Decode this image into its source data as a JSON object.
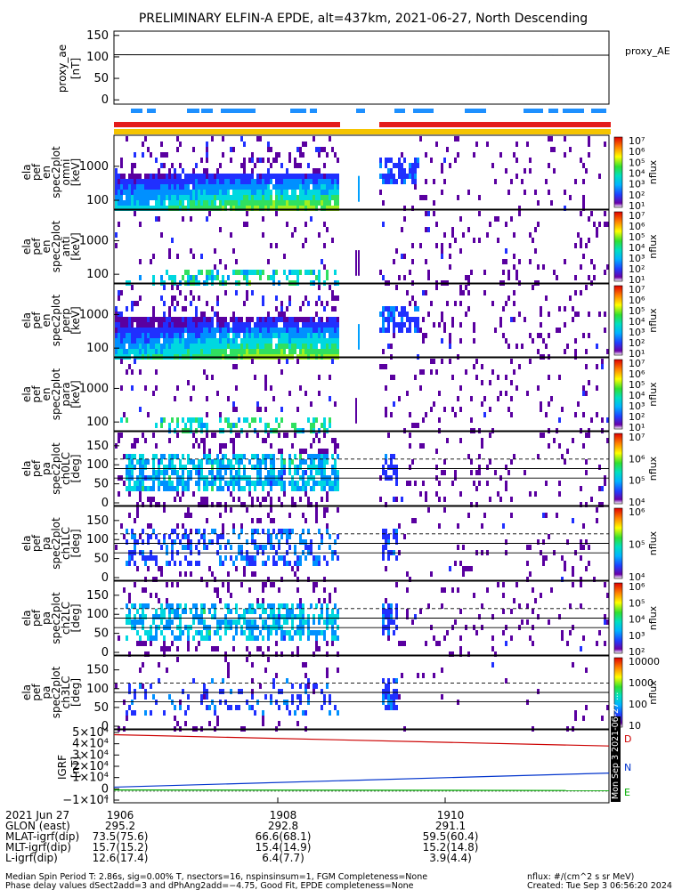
{
  "title": "PRELIMINARY ELFIN-A EPDE, alt=437km, 2021-06-27, North Descending",
  "colors": {
    "red_bar": "#e41c1c",
    "yellow_bar": "#f5c400",
    "blue_mark": "#1e90ff",
    "grf_d": "#cc0000",
    "grf_n": "#0033cc",
    "grf_e": "#00aa00"
  },
  "panels": {
    "proxy_ae": {
      "ylabel": [
        "proxy_ae",
        "[nT]"
      ],
      "yticks": [
        "150",
        "100",
        "50",
        "0"
      ],
      "legend": "proxy_AE"
    },
    "en1": {
      "ylabel": [
        "ela",
        "pef",
        "en",
        "spec2plot",
        "omni",
        "[keV]"
      ],
      "yticks": [
        "1000",
        "100"
      ],
      "cbar_ticks": [
        "10⁷",
        "10⁶",
        "10⁵",
        "10⁴",
        "10³",
        "10²",
        "10¹"
      ],
      "cbar_label": "nflux"
    },
    "en2": {
      "ylabel": [
        "ela",
        "pef",
        "en",
        "spec2plot",
        "anti",
        "[keV]"
      ],
      "yticks": [
        "1000",
        "100"
      ],
      "cbar_ticks": [
        "10⁷",
        "10⁶",
        "10⁵",
        "10⁴",
        "10³",
        "10²",
        "10¹"
      ],
      "cbar_label": "nflux"
    },
    "en3": {
      "ylabel": [
        "ela",
        "pef",
        "en",
        "spec2plot",
        "perp",
        "[keV]"
      ],
      "yticks": [
        "1000",
        "100"
      ],
      "cbar_ticks": [
        "10⁷",
        "10⁶",
        "10⁵",
        "10⁴",
        "10³",
        "10²",
        "10¹"
      ],
      "cbar_label": "nflux"
    },
    "en4": {
      "ylabel": [
        "ela",
        "pef",
        "en",
        "spec2plot",
        "para",
        "[keV]"
      ],
      "yticks": [
        "1000",
        "100"
      ],
      "cbar_ticks": [
        "10⁷",
        "10⁶",
        "10⁵",
        "10⁴",
        "10³",
        "10²",
        "10¹"
      ],
      "cbar_label": "nflux"
    },
    "pa0": {
      "ylabel": [
        "ela",
        "pef",
        "pa",
        "spec2plot",
        "ch0LC",
        "[deg]"
      ],
      "yticks": [
        "150",
        "100",
        "50",
        "0"
      ],
      "cbar_ticks": [
        "10⁷",
        "10⁶",
        "10⁵",
        "10⁴"
      ],
      "cbar_label": "nflux"
    },
    "pa1": {
      "ylabel": [
        "ela",
        "pef",
        "pa",
        "spec2plot",
        "ch1LC",
        "[deg]"
      ],
      "yticks": [
        "150",
        "100",
        "50",
        "0"
      ],
      "cbar_ticks": [
        "10⁶",
        "10⁵",
        "10⁴"
      ],
      "cbar_label": "nflux"
    },
    "pa2": {
      "ylabel": [
        "ela",
        "pef",
        "pa",
        "spec2plot",
        "ch2LC",
        "[deg]"
      ],
      "yticks": [
        "150",
        "100",
        "50",
        "0"
      ],
      "cbar_ticks": [
        "10⁶",
        "10⁵",
        "10⁴",
        "10³",
        "10²"
      ],
      "cbar_label": "nflux"
    },
    "pa3": {
      "ylabel": [
        "ela",
        "pef",
        "pa",
        "spec2plot",
        "ch3LC",
        "[deg]"
      ],
      "yticks": [
        "150",
        "100",
        "50",
        "0"
      ],
      "cbar_ticks": [
        "10000",
        "1000",
        "100",
        "10"
      ],
      "cbar_label": "nflux"
    },
    "igrf": {
      "ylabel": [
        "IGRF",
        "[nT]"
      ],
      "yticks": [
        "5×10⁴",
        "4×10⁴",
        "3×10⁴",
        "2×10⁴",
        "1×10⁴",
        "0",
        "−1×10⁴"
      ],
      "legend": [
        "D",
        "N",
        "E"
      ],
      "side_note": "Mon Sep  3 2021-06-27 ..."
    }
  },
  "chart_data": {
    "type": "line",
    "x_unit": "UT (HHMM)",
    "proxy_ae": {
      "x": [
        "1905:30",
        "1912:00"
      ],
      "y": [
        105,
        104
      ]
    },
    "igrf": {
      "series": [
        {
          "name": "D",
          "x": [
            "1905:30",
            "1912:00"
          ],
          "y": [
            48000,
            38000
          ]
        },
        {
          "name": "N",
          "x": [
            "1905:30",
            "1912:00"
          ],
          "y": [
            1500,
            14000
          ]
        },
        {
          "name": "E",
          "x": [
            "1905:30",
            "1912:00"
          ],
          "y": [
            -1000,
            -1500
          ]
        }
      ]
    }
  },
  "footer": {
    "rows": [
      {
        "label": "2021 Jun 27",
        "v": [
          "1906",
          "1908",
          "1910"
        ]
      },
      {
        "label": "GLON (east)",
        "v": [
          "295.2",
          "292.8",
          "291.1"
        ]
      },
      {
        "label": "MLAT-igrf(dip)",
        "v": [
          "73.5(75.6)",
          "66.6(68.1)",
          "59.5(60.4)"
        ]
      },
      {
        "label": "MLT-igrf(dip)",
        "v": [
          "15.7(15.2)",
          "15.4(14.9)",
          "15.2(14.8)"
        ]
      },
      {
        "label": "L-igrf(dip)",
        "v": [
          "12.6(17.4)",
          "6.4(7.7)",
          "3.9(4.4)"
        ]
      }
    ],
    "note1": "Median Spin Period T: 2.86s, sig=0.00% T, nsectors=16, nspinsinsum=1, FGM Completeness=None",
    "note2": "Phase delay values dSect2add=3 and dPhAng2add=−4.75, Good Fit, EPDE completeness=None",
    "units": "nflux: #/(cm^2 s sr MeV)",
    "created": "Created: Tue Sep  3 06:56:20 2024"
  }
}
